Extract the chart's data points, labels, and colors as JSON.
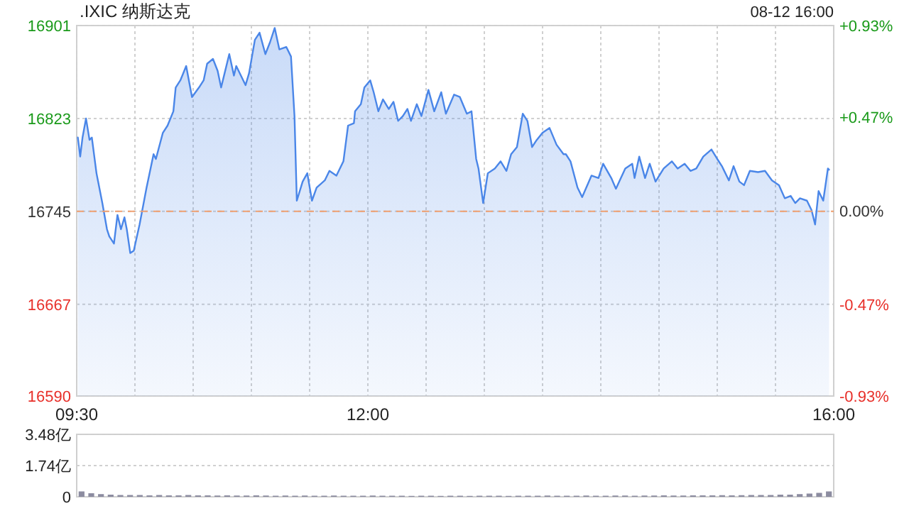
{
  "chart_data": [
    {
      "type": "area",
      "title": ".IXIC 纳斯达克",
      "annotations": [
        "08-12 16:00"
      ],
      "x": [
        9.51,
        9.53,
        9.55,
        9.58,
        9.61,
        9.63,
        9.67,
        9.72,
        9.76,
        9.78,
        9.82,
        9.85,
        9.88,
        9.91,
        9.93,
        9.96,
        9.99,
        10.04,
        10.1,
        10.16,
        10.18,
        10.24,
        10.28,
        10.33,
        10.35,
        10.39,
        10.44,
        10.49,
        10.55,
        10.59,
        10.62,
        10.67,
        10.71,
        10.74,
        10.77,
        10.81,
        10.85,
        10.87,
        10.91,
        10.95,
        10.98,
        11.03,
        11.07,
        11.12,
        11.16,
        11.2,
        11.24,
        11.3,
        11.34,
        11.37,
        11.39,
        11.44,
        11.48,
        11.52,
        11.56,
        11.63,
        11.67,
        11.73,
        11.79,
        11.83,
        11.88,
        11.89,
        11.94,
        11.97,
        12.02,
        12.05,
        12.09,
        12.13,
        12.18,
        12.22,
        12.26,
        12.3,
        12.34,
        12.37,
        12.42,
        12.46,
        12.52,
        12.57,
        12.63,
        12.67,
        12.74,
        12.79,
        12.85,
        12.89,
        12.93,
        12.95,
        12.99,
        13.03,
        13.09,
        13.14,
        13.19,
        13.23,
        13.28,
        13.33,
        13.37,
        13.41,
        13.45,
        13.5,
        13.56,
        13.62,
        13.68,
        13.7,
        13.74,
        13.8,
        13.84,
        13.92,
        13.98,
        14.02,
        14.09,
        14.13,
        14.21,
        14.27,
        14.29,
        14.33,
        14.38,
        14.42,
        14.47,
        14.54,
        14.61,
        14.66,
        14.72,
        14.77,
        14.82,
        14.88,
        14.95,
        15.0,
        15.04,
        15.1,
        15.14,
        15.19,
        15.23,
        15.28,
        15.35,
        15.41,
        15.47,
        15.53,
        15.58,
        15.63,
        15.67,
        15.71,
        15.77,
        15.81,
        15.84,
        15.87,
        15.91,
        15.95,
        15.96
      ],
      "series": [
        {
          "color": "#4a86e8",
          "values": [
            16807,
            16791,
            16807,
            16823,
            16805,
            16807,
            16777,
            16752,
            16730,
            16724,
            16718,
            16742,
            16730,
            16740,
            16730,
            16710,
            16712,
            16734,
            16765,
            16793,
            16789,
            16811,
            16817,
            16829,
            16849,
            16855,
            16867,
            16841,
            16849,
            16855,
            16869,
            16873,
            16863,
            16849,
            16861,
            16877,
            16859,
            16867,
            16859,
            16851,
            16861,
            16889,
            16895,
            16877,
            16887,
            16899,
            16881,
            16883,
            16875,
            16825,
            16754,
            16770,
            16777,
            16754,
            16765,
            16771,
            16779,
            16775,
            16787,
            16817,
            16819,
            16829,
            16835,
            16849,
            16855,
            16845,
            16829,
            16839,
            16831,
            16837,
            16821,
            16825,
            16831,
            16821,
            16835,
            16825,
            16847,
            16829,
            16845,
            16827,
            16843,
            16841,
            16827,
            16829,
            16789,
            16781,
            16752,
            16777,
            16781,
            16787,
            16779,
            16793,
            16799,
            16827,
            16821,
            16799,
            16805,
            16811,
            16815,
            16801,
            16793,
            16793,
            16787,
            16765,
            16757,
            16775,
            16773,
            16785,
            16773,
            16764,
            16781,
            16785,
            16773,
            16791,
            16773,
            16785,
            16770,
            16781,
            16787,
            16781,
            16785,
            16779,
            16781,
            16791,
            16797,
            16789,
            16783,
            16771,
            16783,
            16770,
            16767,
            16779,
            16778,
            16779,
            16771,
            16767,
            16756,
            16758,
            16752,
            16756,
            16754,
            16746,
            16734,
            16762,
            16754,
            16781,
            16780
          ]
        }
      ],
      "xlim": [
        9.5,
        16
      ],
      "xticks": [
        {
          "value": 9.5,
          "label": "09:30"
        },
        {
          "value": 10,
          "label": null
        },
        {
          "value": 10.5,
          "label": null
        },
        {
          "value": 11,
          "label": null
        },
        {
          "value": 11.5,
          "label": null
        },
        {
          "value": 12,
          "label": "12:00"
        },
        {
          "value": 12.5,
          "label": null
        },
        {
          "value": 13,
          "label": null
        },
        {
          "value": 13.5,
          "label": null
        },
        {
          "value": 14,
          "label": null
        },
        {
          "value": 14.5,
          "label": null
        },
        {
          "value": 15,
          "label": null
        },
        {
          "value": 15.5,
          "label": null
        },
        {
          "value": 16,
          "label": "16:00"
        }
      ],
      "ylim": [
        16590,
        16901
      ],
      "yticks": [
        16590,
        16667,
        16745,
        16823,
        16901
      ],
      "y2lim": [
        -0.93,
        0.93
      ],
      "y2ticks": [
        {
          "value": -0.93,
          "label": "-0.93%"
        },
        {
          "value": -0.47,
          "label": "-0.47%"
        },
        {
          "value": 0,
          "label": "0.00%"
        },
        {
          "value": 0.47,
          "label": "+0.47%"
        },
        {
          "value": 0.93,
          "label": "+0.93%"
        }
      ],
      "ref_lines": [
        {
          "axis": "y",
          "value": 16745,
          "color": "#f0a070",
          "line_style": "dashed"
        }
      ],
      "grid": true
    },
    {
      "type": "bar",
      "categories": [
        null,
        null,
        null,
        null,
        null,
        null,
        null,
        null,
        null,
        null,
        null,
        null,
        null,
        null,
        null,
        null,
        null,
        null,
        null,
        null,
        null,
        null,
        null,
        null,
        null,
        null,
        null,
        null,
        null,
        null,
        null,
        null,
        null,
        null,
        null,
        null,
        null,
        null,
        null,
        null,
        null,
        null,
        null,
        null,
        null,
        null,
        null,
        null,
        null,
        null,
        null,
        null,
        null,
        null,
        null,
        null,
        null,
        null,
        null,
        null,
        null,
        null,
        null,
        null,
        null,
        null,
        null,
        null,
        null,
        null,
        null,
        null,
        null,
        null,
        null,
        null,
        null,
        null
      ],
      "series": [
        {
          "color": "#8c8ca0",
          "values": [
            0.3,
            0.2,
            0.15,
            0.12,
            0.1,
            0.1,
            0.1,
            0.08,
            0.1,
            0.08,
            0.08,
            0.1,
            0.08,
            0.08,
            0.07,
            0.08,
            0.07,
            0.07,
            0.08,
            0.07,
            0.06,
            0.07,
            0.06,
            0.07,
            0.06,
            0.06,
            0.07,
            0.06,
            0.06,
            0.06,
            0.07,
            0.06,
            0.06,
            0.06,
            0.05,
            0.06,
            0.06,
            0.05,
            0.06,
            0.06,
            0.05,
            0.06,
            0.06,
            0.06,
            0.05,
            0.06,
            0.06,
            0.06,
            0.07,
            0.06,
            0.06,
            0.06,
            0.07,
            0.06,
            0.06,
            0.07,
            0.07,
            0.06,
            0.07,
            0.07,
            0.08,
            0.07,
            0.07,
            0.08,
            0.08,
            0.08,
            0.09,
            0.08,
            0.09,
            0.1,
            0.1,
            0.1,
            0.12,
            0.12,
            0.15,
            0.18,
            0.22,
            0.3
          ]
        }
      ],
      "ylim": [
        0,
        3.48
      ],
      "yticks": [
        0,
        {
          "value": 1.74,
          "label": "1.74亿"
        },
        {
          "value": 3.48,
          "label": "3.48亿"
        }
      ],
      "grid": "y",
      "tick_labels": "y"
    }
  ]
}
